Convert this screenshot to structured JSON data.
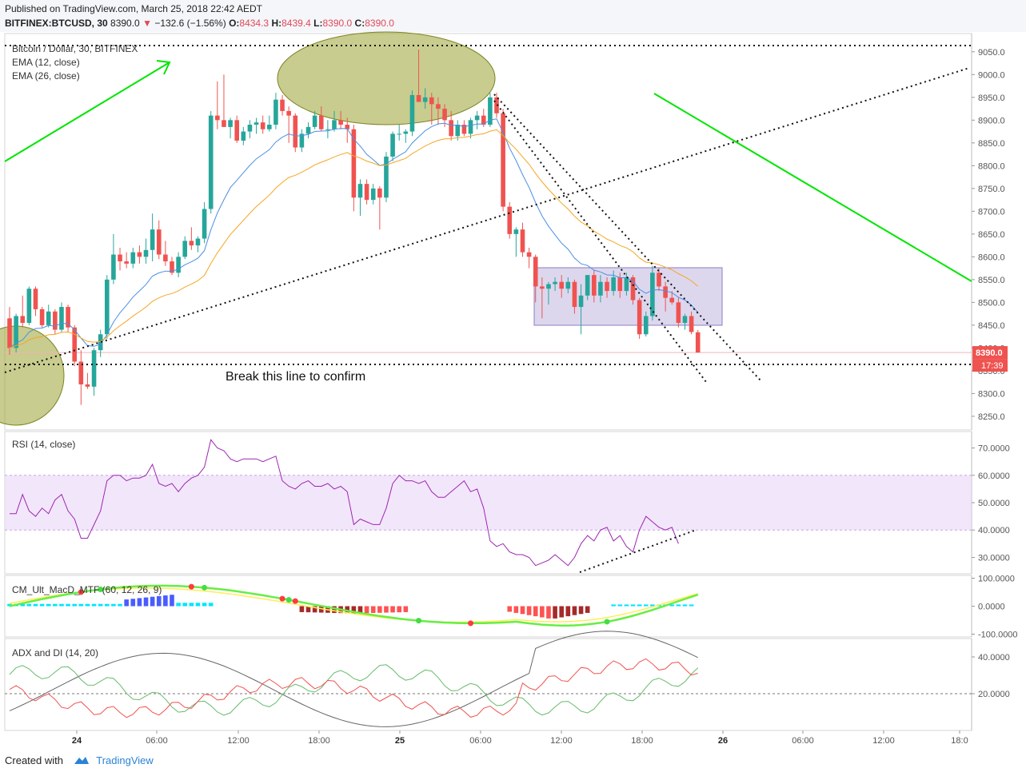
{
  "header": {
    "published": "Published on TradingView.com, March 25, 2018 22:42 AEDT",
    "symbol": "BITFINEX:BTCUSD, 30",
    "last": "8390.0",
    "change": "−132.6 (−1.56%)",
    "open_label": "O:",
    "open": "8434.3",
    "high_label": "H:",
    "high": "8439.4",
    "low_label": "L:",
    "low": "8390.0",
    "close_label": "C:",
    "close": "8390.0"
  },
  "footer": {
    "created_with": "Created with",
    "brand": "TradingView"
  },
  "colors": {
    "up": "#26a69a",
    "down": "#ef5350",
    "ema_fast": "#4a90e2",
    "ema_slow": "#f5a623",
    "rsi": "#9c27b0",
    "band": "#e9d5f7",
    "annotation_green": "#00e600",
    "ellipse": "#9aa231",
    "range_box": "#b3a6d9",
    "adx": "#666666",
    "di_plus": "#66bb6a",
    "di_minus": "#ef5350",
    "macd_fast": "#66ee44",
    "macd_slow": "#ffee55"
  },
  "chart_data": [
    {
      "type": "candlestick",
      "title": "Bitcoin / Dollar, 30, BITFINEX",
      "legend": [
        "EMA (12, close)",
        "EMA (26, close)"
      ],
      "ylim": [
        8220,
        9090
      ],
      "yticks": [
        "8250.0",
        "8300.0",
        "8350.0",
        "8400.0",
        "8450.0",
        "8500.0",
        "8550.0",
        "8600.0",
        "8650.0",
        "8700.0",
        "8750.0",
        "8800.0",
        "8850.0",
        "8900.0",
        "8950.0",
        "9000.0",
        "9050.0"
      ],
      "xticks": [
        "24",
        "06:00",
        "12:00",
        "18:00",
        "25",
        "06:00",
        "12:00",
        "18:00",
        "26",
        "06:00",
        "12:00",
        "18:0"
      ],
      "price_label": "8390.0",
      "countdown_label": "17:39",
      "annotation_text": "Break this line to confirm",
      "candles": [
        {
          "o": 8465,
          "h": 8490,
          "l": 8385,
          "c": 8400
        },
        {
          "o": 8400,
          "h": 8475,
          "l": 8390,
          "c": 8470
        },
        {
          "o": 8470,
          "h": 8515,
          "l": 8445,
          "c": 8455
        },
        {
          "o": 8455,
          "h": 8535,
          "l": 8450,
          "c": 8530
        },
        {
          "o": 8530,
          "h": 8535,
          "l": 8470,
          "c": 8485
        },
        {
          "o": 8485,
          "h": 8490,
          "l": 8445,
          "c": 8450
        },
        {
          "o": 8450,
          "h": 8495,
          "l": 8445,
          "c": 8480
        },
        {
          "o": 8480,
          "h": 8485,
          "l": 8430,
          "c": 8440
        },
        {
          "o": 8440,
          "h": 8500,
          "l": 8435,
          "c": 8490
        },
        {
          "o": 8490,
          "h": 8495,
          "l": 8435,
          "c": 8445
        },
        {
          "o": 8445,
          "h": 8450,
          "l": 8360,
          "c": 8370
        },
        {
          "o": 8370,
          "h": 8395,
          "l": 8275,
          "c": 8320
        },
        {
          "o": 8320,
          "h": 8345,
          "l": 8310,
          "c": 8315
        },
        {
          "o": 8315,
          "h": 8400,
          "l": 8295,
          "c": 8395
        },
        {
          "o": 8395,
          "h": 8440,
          "l": 8380,
          "c": 8430
        },
        {
          "o": 8430,
          "h": 8560,
          "l": 8420,
          "c": 8550
        },
        {
          "o": 8550,
          "h": 8650,
          "l": 8540,
          "c": 8605
        },
        {
          "o": 8605,
          "h": 8620,
          "l": 8570,
          "c": 8590
        },
        {
          "o": 8590,
          "h": 8610,
          "l": 8575,
          "c": 8585
        },
        {
          "o": 8585,
          "h": 8620,
          "l": 8575,
          "c": 8610
        },
        {
          "o": 8610,
          "h": 8625,
          "l": 8585,
          "c": 8600
        },
        {
          "o": 8600,
          "h": 8640,
          "l": 8585,
          "c": 8615
        },
        {
          "o": 8615,
          "h": 8695,
          "l": 8590,
          "c": 8660
        },
        {
          "o": 8660,
          "h": 8680,
          "l": 8595,
          "c": 8605
        },
        {
          "o": 8605,
          "h": 8635,
          "l": 8580,
          "c": 8590
        },
        {
          "o": 8590,
          "h": 8600,
          "l": 8560,
          "c": 8565
        },
        {
          "o": 8565,
          "h": 8610,
          "l": 8555,
          "c": 8600
        },
        {
          "o": 8600,
          "h": 8645,
          "l": 8595,
          "c": 8635
        },
        {
          "o": 8635,
          "h": 8665,
          "l": 8615,
          "c": 8625
        },
        {
          "o": 8625,
          "h": 8645,
          "l": 8610,
          "c": 8640
        },
        {
          "o": 8640,
          "h": 8720,
          "l": 8630,
          "c": 8705
        },
        {
          "o": 8705,
          "h": 8920,
          "l": 8695,
          "c": 8910
        },
        {
          "o": 8910,
          "h": 8985,
          "l": 8880,
          "c": 8900
        },
        {
          "o": 8900,
          "h": 9000,
          "l": 8885,
          "c": 8885
        },
        {
          "o": 8885,
          "h": 8905,
          "l": 8860,
          "c": 8900
        },
        {
          "o": 8900,
          "h": 8910,
          "l": 8850,
          "c": 8855
        },
        {
          "o": 8855,
          "h": 8885,
          "l": 8845,
          "c": 8875
        },
        {
          "o": 8875,
          "h": 8900,
          "l": 8860,
          "c": 8890
        },
        {
          "o": 8890,
          "h": 8905,
          "l": 8870,
          "c": 8895
        },
        {
          "o": 8895,
          "h": 8910,
          "l": 8870,
          "c": 8880
        },
        {
          "o": 8880,
          "h": 8910,
          "l": 8875,
          "c": 8890
        },
        {
          "o": 8890,
          "h": 8960,
          "l": 8880,
          "c": 8945
        },
        {
          "o": 8945,
          "h": 8955,
          "l": 8910,
          "c": 8920
        },
        {
          "o": 8920,
          "h": 8930,
          "l": 8850,
          "c": 8910
        },
        {
          "o": 8910,
          "h": 8915,
          "l": 8830,
          "c": 8840
        },
        {
          "o": 8840,
          "h": 8880,
          "l": 8830,
          "c": 8870
        },
        {
          "o": 8870,
          "h": 8895,
          "l": 8860,
          "c": 8885
        },
        {
          "o": 8885,
          "h": 8920,
          "l": 8880,
          "c": 8910
        },
        {
          "o": 8910,
          "h": 8930,
          "l": 8875,
          "c": 8880
        },
        {
          "o": 8880,
          "h": 8900,
          "l": 8860,
          "c": 8880
        },
        {
          "o": 8880,
          "h": 8920,
          "l": 8875,
          "c": 8900
        },
        {
          "o": 8900,
          "h": 8920,
          "l": 8880,
          "c": 8890
        },
        {
          "o": 8890,
          "h": 8905,
          "l": 8850,
          "c": 8880
        },
        {
          "o": 8880,
          "h": 8890,
          "l": 8700,
          "c": 8730
        },
        {
          "o": 8730,
          "h": 8770,
          "l": 8690,
          "c": 8760
        },
        {
          "o": 8760,
          "h": 8770,
          "l": 8715,
          "c": 8725
        },
        {
          "o": 8725,
          "h": 8760,
          "l": 8715,
          "c": 8750
        },
        {
          "o": 8750,
          "h": 8755,
          "l": 8660,
          "c": 8730
        },
        {
          "o": 8730,
          "h": 8830,
          "l": 8720,
          "c": 8820
        },
        {
          "o": 8820,
          "h": 8875,
          "l": 8810,
          "c": 8870
        },
        {
          "o": 8870,
          "h": 8890,
          "l": 8855,
          "c": 8870
        },
        {
          "o": 8870,
          "h": 8880,
          "l": 8850,
          "c": 8875
        },
        {
          "o": 8875,
          "h": 8965,
          "l": 8865,
          "c": 8955
        },
        {
          "o": 8955,
          "h": 9055,
          "l": 8940,
          "c": 8940
        },
        {
          "o": 8940,
          "h": 8970,
          "l": 8925,
          "c": 8950
        },
        {
          "o": 8950,
          "h": 8960,
          "l": 8890,
          "c": 8935
        },
        {
          "o": 8935,
          "h": 8950,
          "l": 8890,
          "c": 8925
        },
        {
          "o": 8925,
          "h": 8935,
          "l": 8885,
          "c": 8900
        },
        {
          "o": 8900,
          "h": 8920,
          "l": 8855,
          "c": 8865
        },
        {
          "o": 8865,
          "h": 8900,
          "l": 8855,
          "c": 8890
        },
        {
          "o": 8890,
          "h": 8900,
          "l": 8865,
          "c": 8870
        },
        {
          "o": 8870,
          "h": 8905,
          "l": 8860,
          "c": 8900
        },
        {
          "o": 8900,
          "h": 8920,
          "l": 8880,
          "c": 8910
        },
        {
          "o": 8910,
          "h": 8925,
          "l": 8885,
          "c": 8890
        },
        {
          "o": 8890,
          "h": 8960,
          "l": 8885,
          "c": 8950
        },
        {
          "o": 8950,
          "h": 8960,
          "l": 8905,
          "c": 8915
        },
        {
          "o": 8915,
          "h": 8925,
          "l": 8700,
          "c": 8710
        },
        {
          "o": 8710,
          "h": 8720,
          "l": 8640,
          "c": 8650
        },
        {
          "o": 8650,
          "h": 8665,
          "l": 8600,
          "c": 8660
        },
        {
          "o": 8660,
          "h": 8675,
          "l": 8600,
          "c": 8610
        },
        {
          "o": 8610,
          "h": 8620,
          "l": 8575,
          "c": 8600
        },
        {
          "o": 8600,
          "h": 8605,
          "l": 8500,
          "c": 8535
        },
        {
          "o": 8535,
          "h": 8555,
          "l": 8465,
          "c": 8530
        },
        {
          "o": 8530,
          "h": 8545,
          "l": 8495,
          "c": 8540
        },
        {
          "o": 8540,
          "h": 8555,
          "l": 8525,
          "c": 8545
        },
        {
          "o": 8545,
          "h": 8560,
          "l": 8510,
          "c": 8530
        },
        {
          "o": 8530,
          "h": 8555,
          "l": 8520,
          "c": 8545
        },
        {
          "o": 8545,
          "h": 8550,
          "l": 8475,
          "c": 8490
        },
        {
          "o": 8490,
          "h": 8540,
          "l": 8430,
          "c": 8515
        },
        {
          "o": 8515,
          "h": 8560,
          "l": 8505,
          "c": 8560
        },
        {
          "o": 8560,
          "h": 8570,
          "l": 8500,
          "c": 8515
        },
        {
          "o": 8515,
          "h": 8560,
          "l": 8500,
          "c": 8545
        },
        {
          "o": 8545,
          "h": 8555,
          "l": 8510,
          "c": 8525
        },
        {
          "o": 8525,
          "h": 8570,
          "l": 8515,
          "c": 8555
        },
        {
          "o": 8555,
          "h": 8565,
          "l": 8510,
          "c": 8525
        },
        {
          "o": 8525,
          "h": 8565,
          "l": 8515,
          "c": 8555
        },
        {
          "o": 8555,
          "h": 8560,
          "l": 8495,
          "c": 8505
        },
        {
          "o": 8505,
          "h": 8510,
          "l": 8420,
          "c": 8430
        },
        {
          "o": 8430,
          "h": 8480,
          "l": 8425,
          "c": 8470
        },
        {
          "o": 8470,
          "h": 8580,
          "l": 8460,
          "c": 8565
        },
        {
          "o": 8565,
          "h": 8575,
          "l": 8525,
          "c": 8535
        },
        {
          "o": 8535,
          "h": 8545,
          "l": 8480,
          "c": 8510
        },
        {
          "o": 8510,
          "h": 8525,
          "l": 8495,
          "c": 8500
        },
        {
          "o": 8500,
          "h": 8510,
          "l": 8445,
          "c": 8455
        },
        {
          "o": 8455,
          "h": 8475,
          "l": 8440,
          "c": 8470
        },
        {
          "o": 8470,
          "h": 8480,
          "l": 8430,
          "c": 8435
        },
        {
          "o": 8434.3,
          "h": 8439.4,
          "l": 8390,
          "c": 8390
        }
      ]
    },
    {
      "type": "line",
      "title": "RSI (14, close)",
      "ylim": [
        24,
        76
      ],
      "yticks": [
        "30.0000",
        "40.0000",
        "50.0000",
        "60.0000",
        "70.0000"
      ],
      "band": [
        40,
        60
      ],
      "values": [
        46,
        46,
        53,
        47,
        45,
        48,
        46,
        51,
        53,
        47,
        44,
        37,
        37,
        42,
        47,
        58,
        60,
        60,
        58,
        59,
        59,
        60,
        64,
        57,
        56,
        57,
        54,
        57,
        59,
        60,
        63,
        73,
        70,
        69,
        66,
        65,
        66,
        66,
        66,
        65,
        66,
        67,
        58,
        56,
        55,
        57,
        58,
        56,
        56,
        57,
        55,
        56,
        54,
        42,
        44,
        43,
        42,
        42,
        48,
        57,
        60,
        58,
        58,
        57,
        58,
        54,
        52,
        52,
        54,
        56,
        58,
        54,
        55,
        48,
        36,
        34,
        35,
        32,
        31,
        31,
        30,
        27,
        28,
        29,
        31,
        29,
        27,
        30,
        35,
        38,
        36,
        40,
        41,
        36,
        38,
        34,
        32,
        40,
        45,
        43,
        41,
        40,
        41,
        35
      ]
    },
    {
      "type": "line",
      "title": "CM_Ult_MacD_MTF (60, 12, 26, 9)",
      "yticks": [
        "100.0000",
        "0.0000",
        "-100.0000"
      ],
      "ylim": [
        -110,
        110
      ]
    },
    {
      "type": "line",
      "title": "ADX and DI (14, 20)",
      "yticks": [
        "20.0000",
        "40.0000"
      ],
      "ylim": [
        0,
        50
      ],
      "threshold": 20
    }
  ]
}
